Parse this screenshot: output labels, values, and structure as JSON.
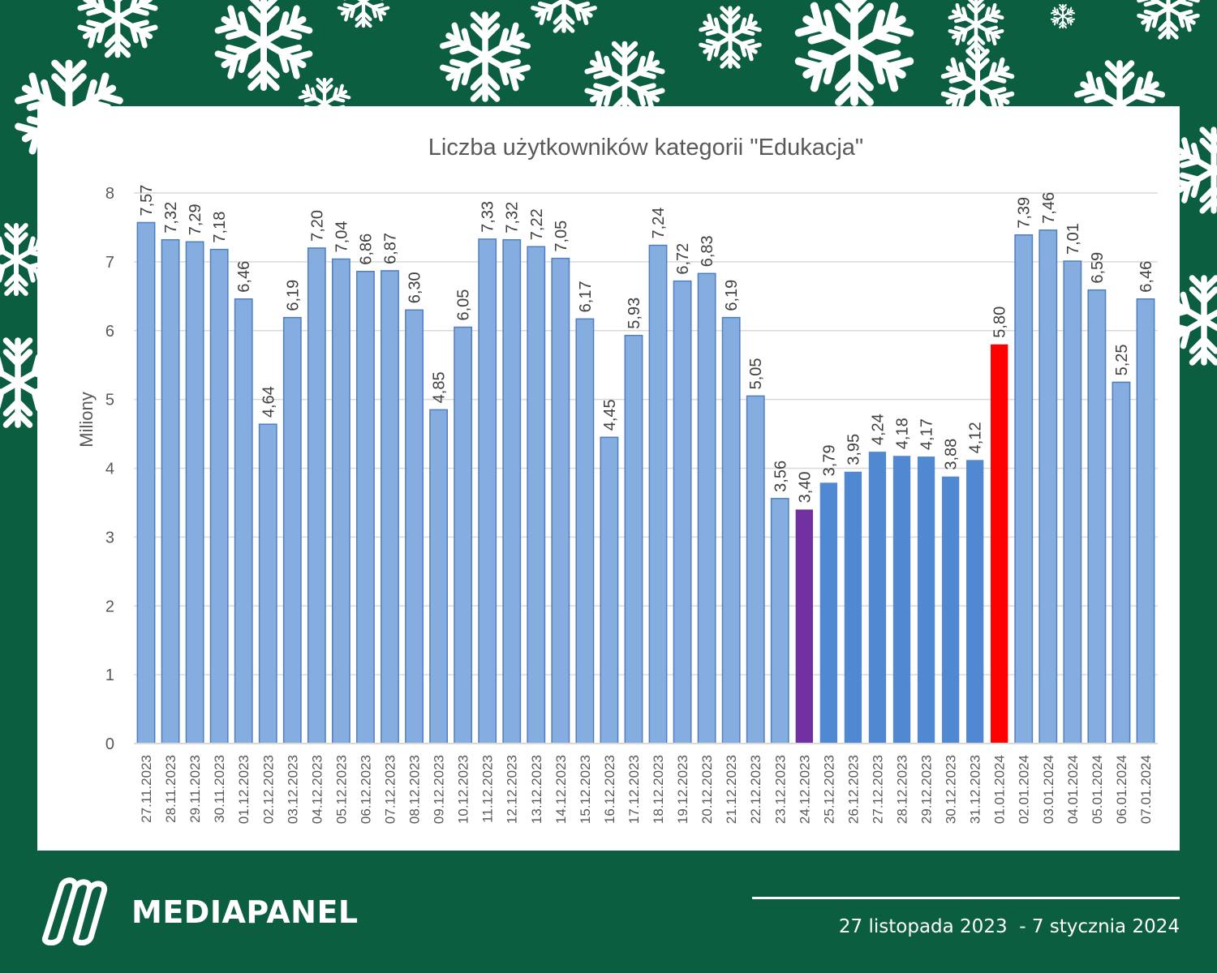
{
  "chart_data": {
    "type": "bar",
    "title": "Liczba użytkowników kategorii \"Edukacja\"",
    "ylabel": "Miliony",
    "xlabel": "",
    "ylim": [
      0,
      8
    ],
    "yticks": [
      0,
      1,
      2,
      3,
      4,
      5,
      6,
      7,
      8
    ],
    "grid": true,
    "decimal_separator": ",",
    "categories": [
      "27.11.2023",
      "28.11.2023",
      "29.11.2023",
      "30.11.2023",
      "01.12.2023",
      "02.12.2023",
      "03.12.2023",
      "04.12.2023",
      "05.12.2023",
      "06.12.2023",
      "07.12.2023",
      "08.12.2023",
      "09.12.2023",
      "10.12.2023",
      "11.12.2023",
      "12.12.2023",
      "13.12.2023",
      "14.12.2023",
      "15.12.2023",
      "16.12.2023",
      "17.12.2023",
      "18.12.2023",
      "19.12.2023",
      "20.12.2023",
      "21.12.2023",
      "22.12.2023",
      "23.12.2023",
      "24.12.2023",
      "25.12.2023",
      "26.12.2023",
      "27.12.2023",
      "28.12.2023",
      "29.12.2023",
      "30.12.2023",
      "31.12.2023",
      "01.01.2024",
      "02.01.2024",
      "03.01.2024",
      "04.01.2024",
      "05.01.2024",
      "06.01.2024",
      "07.01.2024"
    ],
    "values": [
      7.57,
      7.32,
      7.29,
      7.18,
      6.46,
      4.64,
      6.19,
      7.2,
      7.04,
      6.86,
      6.87,
      6.3,
      4.85,
      6.05,
      7.33,
      7.32,
      7.22,
      7.05,
      6.17,
      4.45,
      5.93,
      7.24,
      6.72,
      6.83,
      6.19,
      5.05,
      3.56,
      3.4,
      3.79,
      3.95,
      4.24,
      4.18,
      4.17,
      3.88,
      4.12,
      5.8,
      7.39,
      7.46,
      7.01,
      6.59,
      5.25,
      6.46
    ],
    "colors": {
      "default": "#85ade0",
      "default_stroke": "#4f7fc0",
      "highlight_period": "#5089d2",
      "christmas_eve": "#7030a0",
      "new_year": "#ff0000",
      "grid": "#d9d9d9",
      "text": "#595959"
    },
    "bar_color_overrides": {
      "24.12.2023": "christmas_eve",
      "25.12.2023": "highlight_period",
      "26.12.2023": "highlight_period",
      "27.12.2023": "highlight_period",
      "28.12.2023": "highlight_period",
      "29.12.2023": "highlight_period",
      "30.12.2023": "highlight_period",
      "31.12.2023": "highlight_period",
      "01.01.2024": "new_year"
    }
  },
  "brand": {
    "name": "MEDIAPANEL",
    "logo_icon": "mediapanel-logo-icon"
  },
  "footer": {
    "date_range": "27 listopada 2023  - 7 stycznia 2024"
  },
  "decor": {
    "background_color": "#0b5e3f",
    "icon": "snowflake-icon"
  }
}
